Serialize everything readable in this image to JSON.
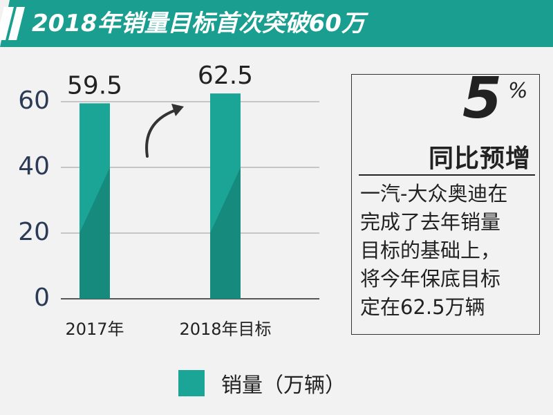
{
  "title": "2018年销量目标首次突破60万",
  "colors": {
    "header": "#1a9e8f",
    "bar_light": "#1aa596",
    "bar_dark": "#168a7d",
    "text": "#222222"
  },
  "chart_data": {
    "type": "bar",
    "categories": [
      "2017年",
      "2018年目标"
    ],
    "series": [
      {
        "name": "销量（万辆）",
        "values": [
          59.5,
          62.5
        ]
      }
    ],
    "data_labels": [
      "59.5",
      "62.5"
    ],
    "y_ticks": [
      0,
      20,
      40,
      60
    ],
    "ylim": [
      0,
      60
    ],
    "grid": true,
    "legend": "bottom",
    "annotation_icon": "curved-up-arrow"
  },
  "info": {
    "big_number": "5",
    "percent_sign": "%",
    "yoy_label": "同比预增",
    "lines": [
      "一汽-大众奥迪在",
      "完成了去年销量",
      "目标的基础上，",
      "将今年保底目标",
      "定在62.5万辆"
    ]
  },
  "legend": {
    "label": "销量（万辆）"
  }
}
